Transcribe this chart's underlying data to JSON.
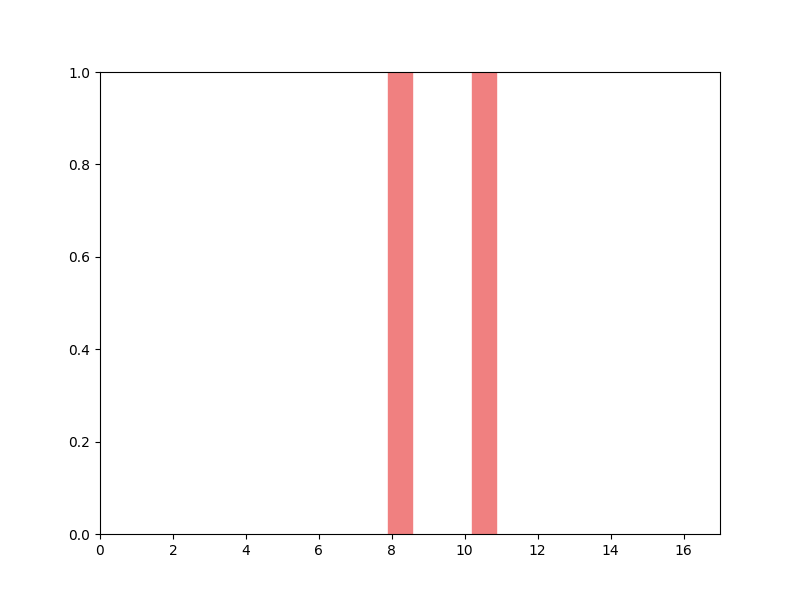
{
  "xlim": [
    0,
    17
  ],
  "ylim": [
    0,
    1.0
  ],
  "xticks": [
    0,
    2,
    4,
    6,
    8,
    10,
    12,
    14,
    16
  ],
  "yticks": [
    0.0,
    0.2,
    0.4,
    0.6,
    0.8,
    1.0
  ],
  "bars": [
    {
      "xmin": 7.9,
      "xmax": 8.55,
      "ymin": 0,
      "ymax": 1.0
    },
    {
      "xmin": 10.2,
      "xmax": 10.85,
      "ymin": 0,
      "ymax": 1.0
    }
  ],
  "bar_color": "#f08080",
  "bar_alpha": 1.0,
  "background_color": "#ffffff",
  "figsize": [
    8.0,
    6.0
  ],
  "dpi": 100
}
